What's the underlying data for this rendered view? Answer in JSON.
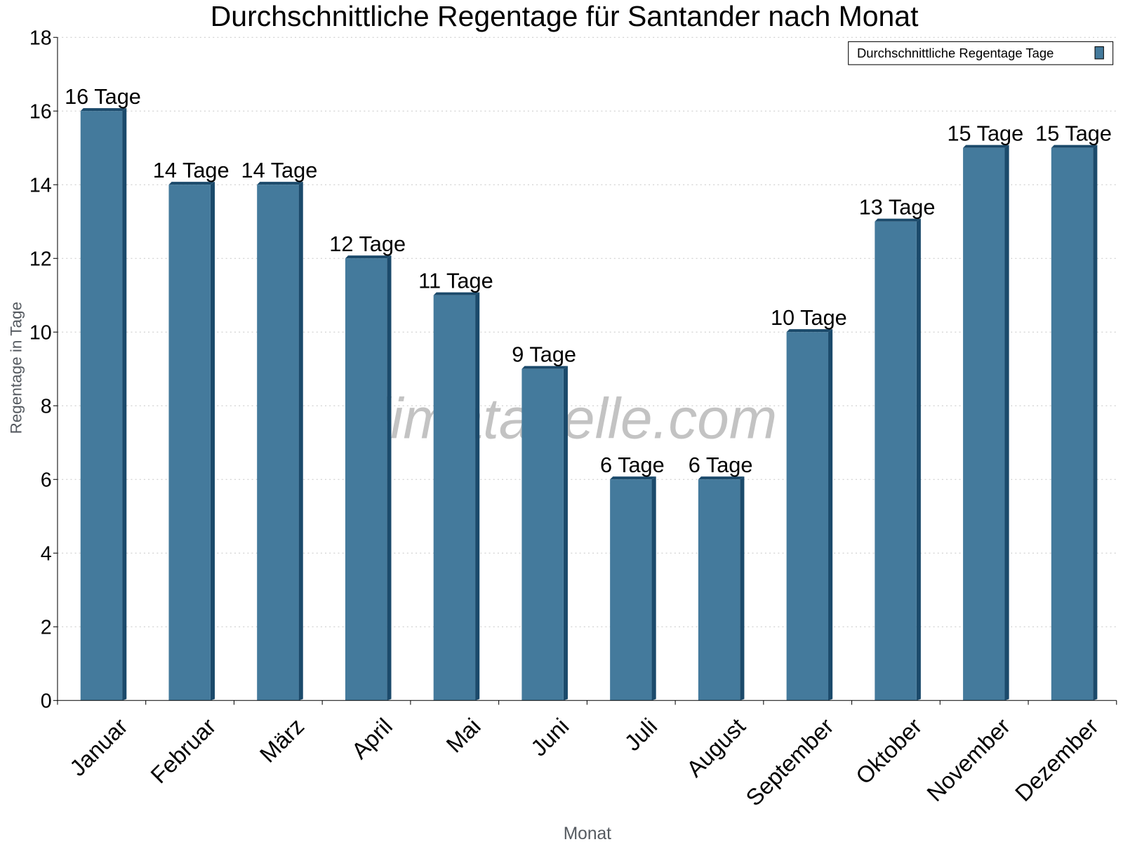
{
  "chart_data": {
    "type": "bar",
    "title": "Durchschnittliche Regentage für Santander nach Monat",
    "xlabel": "Monat",
    "ylabel": "Regentage in Tage",
    "ylim": [
      0,
      18
    ],
    "yticks": [
      0,
      2,
      4,
      6,
      8,
      10,
      12,
      14,
      16,
      18
    ],
    "grid": true,
    "legend_position": "top-right",
    "categories": [
      "Januar",
      "Februar",
      "März",
      "April",
      "Mai",
      "Juni",
      "Juli",
      "August",
      "September",
      "Oktober",
      "November",
      "Dezember"
    ],
    "series": [
      {
        "name": "Durchschnittliche Regentage Tage",
        "color": "#447a9c",
        "side_color": "#1b4a6b",
        "values": [
          16,
          14,
          14,
          12,
          11,
          9,
          6,
          6,
          10,
          13,
          15,
          15
        ]
      }
    ],
    "data_labels": [
      "16 Tage",
      "14 Tage",
      "14 Tage",
      "12 Tage",
      "11 Tage",
      "9 Tage",
      "6 Tage",
      "6 Tage",
      "10 Tage",
      "13 Tage",
      "15 Tage",
      "15 Tage"
    ],
    "watermark": "klimatabelle.com"
  }
}
